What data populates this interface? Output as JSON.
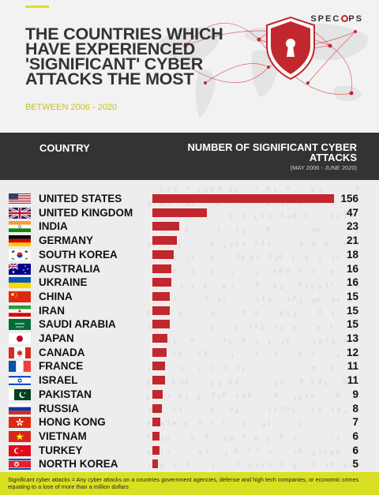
{
  "header": {
    "title": "The countries which have experienced 'significant' cyber attacks the most",
    "subtitle": "BETWEEN 2006 - 2020",
    "brand": {
      "left": "SPEC",
      "right": "PS"
    }
  },
  "table_head": {
    "country_label": "COUNTRY",
    "attacks_label": "NUMBER OF SIGNIFICANT CYBER ATTACKS",
    "range_label": "(MAY 2006 - JUNE 2020)"
  },
  "colors": {
    "bar": "#c1272d",
    "accent": "#d9e021",
    "dark": "#333333"
  },
  "chart_data": {
    "type": "bar",
    "orientation": "horizontal",
    "xlim": [
      0,
      156
    ],
    "grid": false,
    "categories": [
      "UNITED STATES",
      "UNITED KINGDOM",
      "INDIA",
      "GERMANY",
      "SOUTH KOREA",
      "AUSTRALIA",
      "UKRAINE",
      "CHINA",
      "IRAN",
      "SAUDI ARABIA",
      "JAPAN",
      "CANADA",
      "FRANCE",
      "ISRAEL",
      "PAKISTAN",
      "RUSSIA",
      "HONG KONG",
      "VIETNAM",
      "TURKEY",
      "NORTH KOREA"
    ],
    "values": [
      156,
      47,
      23,
      21,
      18,
      16,
      16,
      15,
      15,
      15,
      13,
      12,
      11,
      11,
      9,
      8,
      7,
      6,
      6,
      5
    ],
    "flags": [
      "us",
      "uk",
      "in",
      "de",
      "kr",
      "au",
      "ua",
      "cn",
      "ir",
      "sa",
      "jp",
      "ca",
      "fr",
      "il",
      "pk",
      "ru",
      "hk",
      "vn",
      "tr",
      "kp"
    ]
  },
  "footer": {
    "note": "Significant cyber attacks = Any cyber attacks on a countries government agencies, defense and high tech companies, or economic crimes equating to a lose of more than a million dollars"
  }
}
